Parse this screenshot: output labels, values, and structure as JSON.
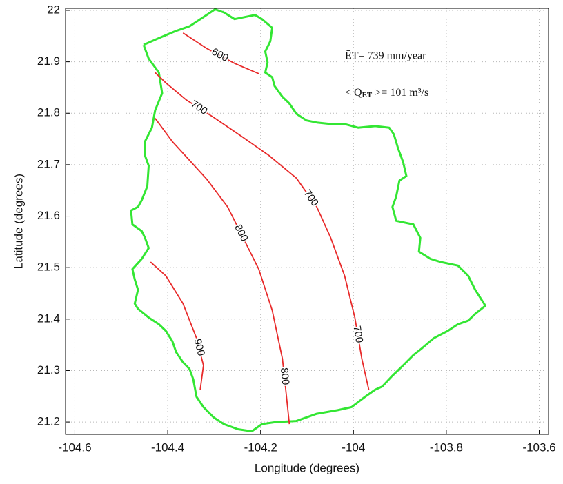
{
  "chart_data": {
    "type": "contour",
    "x_label": "Longitude (degrees)",
    "y_label": "Latitude (degrees)",
    "annotations": [
      "ĒT= 739 mm/year",
      [
        "< Q",
        "ET",
        " >= 101 m³/s"
      ]
    ],
    "xlim": [
      -104.62,
      -103.58
    ],
    "ylim": [
      21.176,
      22.004
    ],
    "xticks": [
      -104.6,
      -104.4,
      -104.2,
      -104,
      -103.8,
      -103.6
    ],
    "yticks": [
      21.2,
      21.3,
      21.4,
      21.5,
      21.6,
      21.7,
      21.8,
      21.9,
      22
    ],
    "grid": true,
    "boundary": {
      "color": "#33e633",
      "x": [
        -104.452,
        -104.419,
        -104.382,
        -104.353,
        -104.323,
        -104.298,
        -104.279,
        -104.256,
        -104.234,
        -104.212,
        -104.197,
        -104.175,
        -104.179,
        -104.19,
        -104.185,
        -104.19,
        -104.175,
        -104.17,
        -104.153,
        -104.138,
        -104.123,
        -104.101,
        -104.079,
        -104.049,
        -104.019,
        -103.99,
        -103.953,
        -103.923,
        -103.913,
        -103.904,
        -103.893,
        -103.886,
        -103.901,
        -103.908,
        -103.916,
        -103.908,
        -103.871,
        -103.856,
        -103.859,
        -103.834,
        -103.812,
        -103.775,
        -103.753,
        -103.738,
        -103.716,
        -103.738,
        -103.753,
        -103.775,
        -103.797,
        -103.827,
        -103.853,
        -103.871,
        -103.893,
        -103.916,
        -103.938,
        -103.953,
        -103.975,
        -104.004,
        -104.034,
        -104.079,
        -104.123,
        -104.167,
        -104.197,
        -104.219,
        -104.249,
        -104.279,
        -104.301,
        -104.323,
        -104.338,
        -104.345,
        -104.353,
        -104.367,
        -104.382,
        -104.39,
        -104.404,
        -104.419,
        -104.441,
        -104.464,
        -104.471,
        -104.464,
        -104.471,
        -104.476,
        -104.456,
        -104.441,
        -104.449,
        -104.456,
        -104.476,
        -104.479,
        -104.464,
        -104.456,
        -104.444,
        -104.441,
        -104.449,
        -104.449,
        -104.434,
        -104.427,
        -104.412,
        -104.419,
        -104.441,
        -104.452
      ],
      "y": [
        21.933,
        21.946,
        21.96,
        21.969,
        21.987,
        22.002,
        21.996,
        21.983,
        21.987,
        21.991,
        21.983,
        21.966,
        21.94,
        21.92,
        21.899,
        21.879,
        21.87,
        21.853,
        21.832,
        21.819,
        21.799,
        21.786,
        21.782,
        21.779,
        21.779,
        21.772,
        21.775,
        21.772,
        21.759,
        21.732,
        21.705,
        21.678,
        21.669,
        21.638,
        21.618,
        21.591,
        21.584,
        21.558,
        21.531,
        21.517,
        21.511,
        21.504,
        21.484,
        21.457,
        21.426,
        21.41,
        21.397,
        21.39,
        21.377,
        21.363,
        21.343,
        21.33,
        21.31,
        21.29,
        21.269,
        21.263,
        21.249,
        21.229,
        21.223,
        21.216,
        21.202,
        21.2,
        21.196,
        21.182,
        21.186,
        21.196,
        21.209,
        21.229,
        21.249,
        21.283,
        21.303,
        21.316,
        21.336,
        21.357,
        21.377,
        21.39,
        21.403,
        21.42,
        21.43,
        21.457,
        21.477,
        21.497,
        21.517,
        21.538,
        21.558,
        21.571,
        21.584,
        21.611,
        21.618,
        21.631,
        21.658,
        21.698,
        21.718,
        21.745,
        21.772,
        21.806,
        21.839,
        21.879,
        21.906,
        21.933
      ]
    },
    "contours": [
      {
        "level": 600,
        "color": "#e82a2a",
        "x": [
          -104.367,
          -104.316,
          -104.256,
          -104.204
        ],
        "y": [
          21.956,
          21.926,
          21.897,
          21.877
        ]
      },
      {
        "level": 700,
        "color": "#e82a2a",
        "x": [
          -104.427,
          -104.404,
          -104.36,
          -104.301,
          -104.241,
          -104.182,
          -104.123,
          -104.079,
          -104.049,
          -104.019,
          -103.997,
          -103.982,
          -103.967
        ],
        "y": [
          21.879,
          21.859,
          21.826,
          21.792,
          21.755,
          21.718,
          21.674,
          21.618,
          21.558,
          21.484,
          21.403,
          21.323,
          21.263
        ]
      },
      {
        "level": 800,
        "color": "#e82a2a",
        "x": [
          -104.427,
          -104.39,
          -104.316,
          -104.271,
          -104.241,
          -104.204,
          -104.175,
          -104.153,
          -104.145,
          -104.138
        ],
        "y": [
          21.79,
          21.745,
          21.672,
          21.618,
          21.564,
          21.497,
          21.417,
          21.323,
          21.256,
          21.196
        ]
      },
      {
        "level": 900,
        "color": "#e82a2a",
        "x": [
          -104.437,
          -104.404,
          -104.367,
          -104.338,
          -104.323,
          -104.33
        ],
        "y": [
          21.511,
          21.484,
          21.43,
          21.363,
          21.31,
          21.263
        ]
      }
    ]
  }
}
